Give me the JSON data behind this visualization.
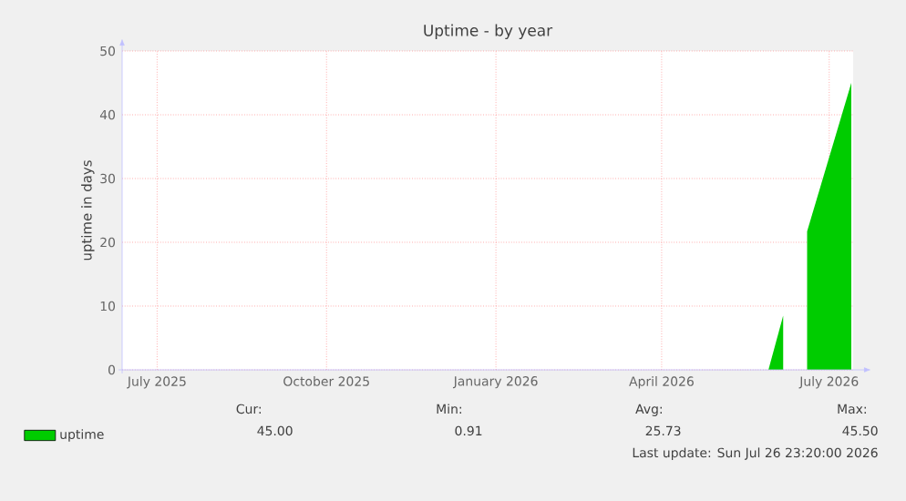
{
  "chart_data": {
    "type": "area",
    "title": "Uptime - by year",
    "ylabel": "uptime in days",
    "x": [
      "2026-05-29",
      "2026-06-06",
      "2026-06-07",
      "2026-06-19",
      "2026-07-13"
    ],
    "series": [
      {
        "name": "uptime",
        "color": "#00cc00",
        "values": [
          0,
          8.5,
          null,
          21.7,
          45
        ]
      }
    ],
    "xlim": [
      "2025-06-12",
      "2026-07-14"
    ],
    "xticks": [
      {
        "value": "2025-07-01",
        "label": "July 2025"
      },
      {
        "value": "2025-10-01",
        "label": "October 2025"
      },
      {
        "value": "2026-01-01",
        "label": "January 2026"
      },
      {
        "value": "2026-04-01",
        "label": "April 2026"
      },
      {
        "value": "2026-07-01",
        "label": "July 2026"
      }
    ],
    "ylim": [
      0,
      50
    ],
    "yticks": [
      0,
      10,
      20,
      30,
      40,
      50
    ],
    "grid": true,
    "legend": "bottom left",
    "annotations": [
      "Cur:",
      "45.00",
      "Min:",
      "0.91",
      "Avg:",
      "25.73",
      "Max:",
      "45.50",
      "Last update: Sun Jul 26 23:20:00 2026"
    ]
  }
}
